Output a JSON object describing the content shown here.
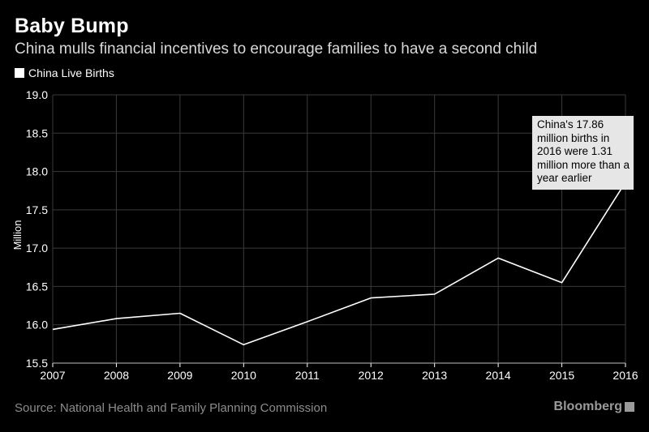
{
  "header": {
    "title": "Baby Bump",
    "subtitle": "China mulls financial incentives to encourage families to have a second child"
  },
  "colors": {
    "background": "#000000",
    "line": "#ffffff",
    "grid": "#3a3a3a",
    "axis_text": "#ffffff",
    "callout_bg": "#e6e6e6"
  },
  "chart_data": {
    "type": "line",
    "title": "Baby Bump",
    "subtitle": "China mulls financial incentives to encourage families to have a second child",
    "xlabel": "",
    "ylabel": "Million",
    "x": [
      2007,
      2008,
      2009,
      2010,
      2011,
      2012,
      2013,
      2014,
      2015,
      2016
    ],
    "x_tick_labels": [
      "2007",
      "2008",
      "2009",
      "2010",
      "2011",
      "2012",
      "2013",
      "2014",
      "2015",
      "2016"
    ],
    "series": [
      {
        "name": "China Live Births",
        "values": [
          15.94,
          16.08,
          16.15,
          15.74,
          16.04,
          16.35,
          16.4,
          16.87,
          16.55,
          17.86
        ]
      }
    ],
    "ylim": [
      15.5,
      19.0
    ],
    "y_ticks": [
      15.5,
      16.0,
      16.5,
      17.0,
      17.5,
      18.0,
      18.5,
      19.0
    ],
    "y_tick_labels": [
      "15.5",
      "16.0",
      "16.5",
      "17.0",
      "17.5",
      "18.0",
      "18.5",
      "19.0"
    ],
    "grid": true,
    "legend_position": "top-left",
    "annotation": {
      "x": 2016,
      "y": 17.86,
      "text": "China's 17.86 million births in 2016 were 1.31 million more than a year earlier"
    }
  },
  "footer": {
    "source": "Source: National Health and Family Planning Commission",
    "brand": "Bloomberg"
  }
}
